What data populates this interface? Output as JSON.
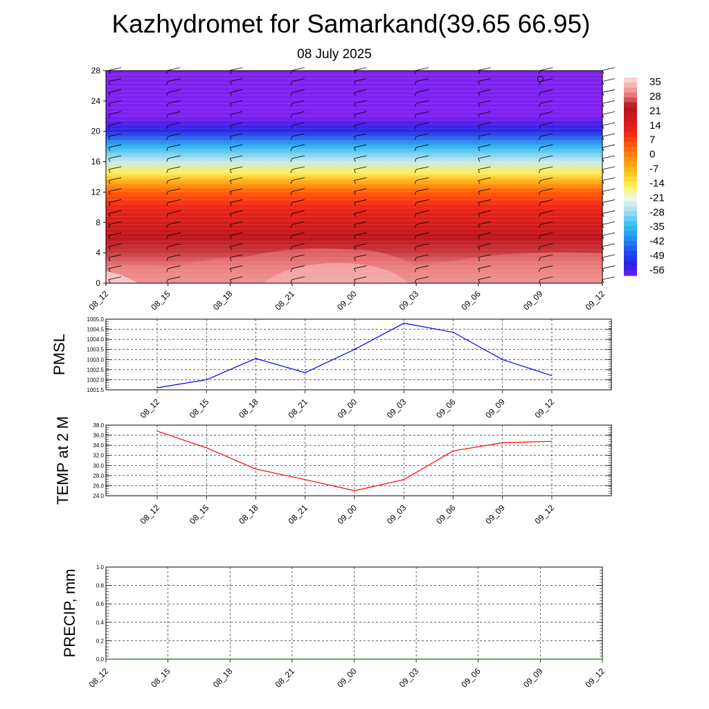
{
  "header": {
    "title": "Kazhydromet for Samarkand(39.65 66.95)",
    "date": "08 July 2025"
  },
  "chart_data": [
    {
      "type": "heatmap",
      "name": "temperature-cross-section",
      "x_categories": [
        "08_12",
        "08_15",
        "08_18",
        "08_21",
        "09_00",
        "09_03",
        "09_06",
        "09_09",
        "09_12"
      ],
      "y_ticks": [
        0,
        4,
        8,
        12,
        16,
        20,
        24,
        28
      ],
      "ylim": [
        0,
        28
      ],
      "colorbar_ticks": [
        35,
        28,
        21,
        14,
        7,
        0,
        -7,
        -14,
        -21,
        -28,
        -35,
        -42,
        -49,
        -56
      ],
      "colorbar_range": [
        -60,
        38
      ],
      "colorbar_colors": [
        "#7f20f0",
        "#2a1fe6",
        "#1e4bf5",
        "#2a8df2",
        "#33bff0",
        "#9fdcf5",
        "#eef7e8",
        "#fff25a",
        "#ffc21c",
        "#ff9312",
        "#ff5c0c",
        "#ef2515",
        "#d01a1a",
        "#b5151e",
        "#f08a8a",
        "#fbd0d0"
      ],
      "levels_profile": [
        {
          "y": 0,
          "t": 34
        },
        {
          "y": 2,
          "t": 31
        },
        {
          "y": 4,
          "t": 27
        },
        {
          "y": 6,
          "t": 23
        },
        {
          "y": 8,
          "t": 17
        },
        {
          "y": 10,
          "t": 12
        },
        {
          "y": 12,
          "t": 5
        },
        {
          "y": 13.5,
          "t": -6
        },
        {
          "y": 14.5,
          "t": -14
        },
        {
          "y": 16,
          "t": -24
        },
        {
          "y": 18,
          "t": -35
        },
        {
          "y": 20,
          "t": -52
        },
        {
          "y": 21,
          "t": -56
        },
        {
          "y": 22,
          "t": -60
        },
        {
          "y": 28,
          "t": -60
        }
      ],
      "wind_barbs": true
    },
    {
      "type": "line",
      "name": "pmsl",
      "ylabel": "PMSL",
      "x": [
        "08_12",
        "08_15",
        "08_18",
        "08_21",
        "09_00",
        "09_03",
        "09_06",
        "09_09",
        "09_12"
      ],
      "values": [
        1001.6,
        1002.0,
        1003.05,
        1002.35,
        1003.5,
        1004.8,
        1004.35,
        1003.0,
        1002.2
      ],
      "ylim": [
        1001.5,
        1005.0
      ],
      "y_ticks": [
        "1001.5",
        "1002.0",
        "1002.5",
        "1003.0",
        "1003.5",
        "1004.0",
        "1004.5",
        "1005.0"
      ],
      "color": "#0000ff"
    },
    {
      "type": "line",
      "name": "temp-2m",
      "ylabel": "TEMP at 2 M",
      "x": [
        "08_12",
        "08_15",
        "08_18",
        "08_21",
        "09_00",
        "09_03",
        "09_06",
        "09_09",
        "09_12"
      ],
      "values": [
        36.8,
        33.5,
        29.3,
        27.2,
        25.0,
        27.2,
        32.9,
        34.5,
        34.8
      ],
      "ylim": [
        24.0,
        38.0
      ],
      "y_ticks": [
        "24.0",
        "26.0",
        "28.0",
        "30.0",
        "32.0",
        "34.0",
        "36.0",
        "38.0"
      ],
      "color": "#ff0000"
    },
    {
      "type": "line",
      "name": "precip",
      "ylabel": "PRECIP, mm",
      "x": [
        "08_12",
        "08_15",
        "08_18",
        "08_21",
        "09_00",
        "09_03",
        "09_06",
        "09_09",
        "09_12"
      ],
      "values": [
        0,
        0,
        0,
        0,
        0,
        0,
        0,
        0,
        0
      ],
      "ylim": [
        0.0,
        1.0
      ],
      "y_ticks": [
        "0.0",
        "0.2",
        "0.4",
        "0.6",
        "0.8",
        "1.0"
      ],
      "color": "#008000"
    }
  ]
}
